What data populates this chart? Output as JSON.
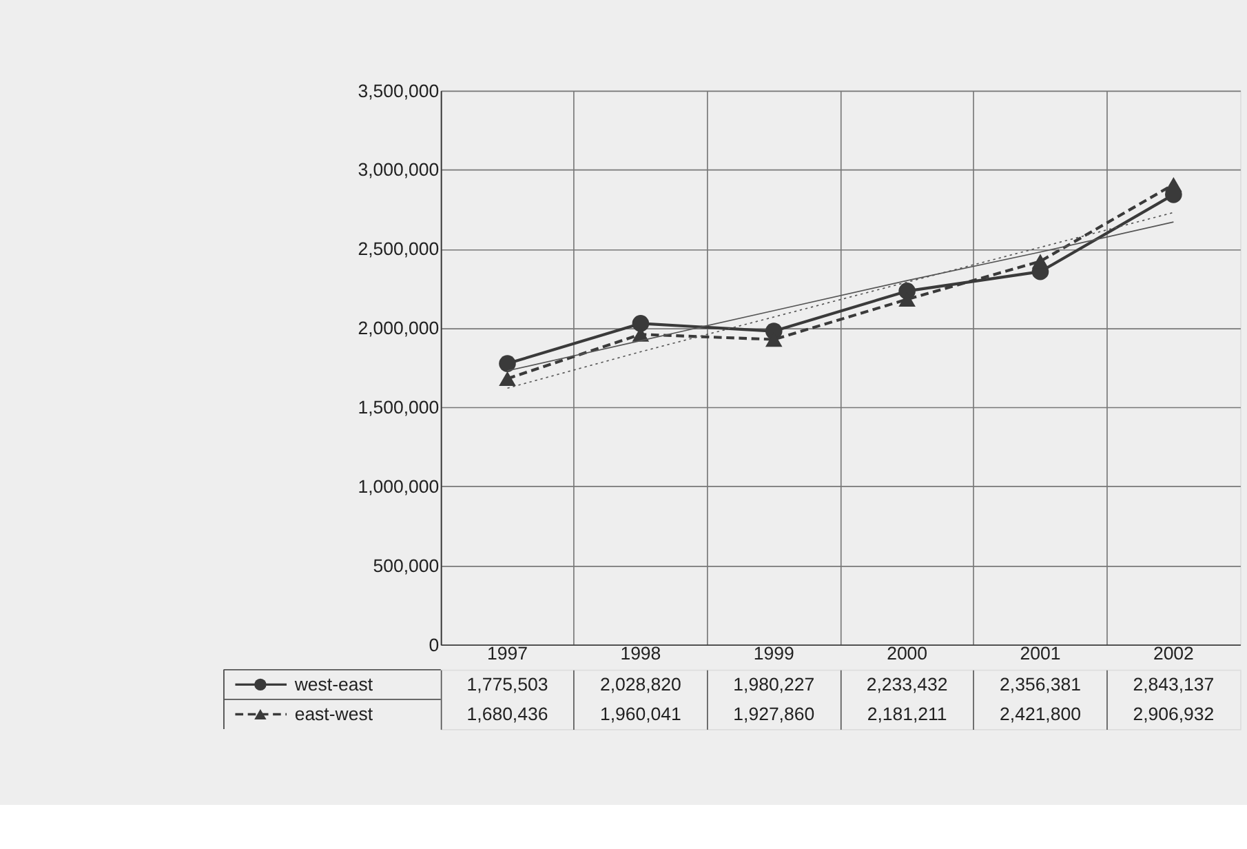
{
  "chart_data": {
    "type": "line",
    "categories": [
      "1997",
      "1998",
      "1999",
      "2000",
      "2001",
      "2002"
    ],
    "ylim": [
      0,
      3500000
    ],
    "grid": true,
    "legend": "bottom",
    "yticks": [
      {
        "value": 0,
        "label": "0"
      },
      {
        "value": 500000,
        "label": "500,000"
      },
      {
        "value": 1000000,
        "label": "1,000,000"
      },
      {
        "value": 1500000,
        "label": "1,500,000"
      },
      {
        "value": 2000000,
        "label": "2,000,000"
      },
      {
        "value": 2500000,
        "label": "2,500,000"
      },
      {
        "value": 3000000,
        "label": "3,000,000"
      },
      {
        "value": 3500000,
        "label": "3,500,000"
      }
    ],
    "series": [
      {
        "name": "west-east",
        "color": "#3a3a3a",
        "marker": "circle",
        "line_style": "solid",
        "values": [
          1775503,
          2028820,
          1980227,
          2233432,
          2356381,
          2843137
        ],
        "value_labels": [
          "1,775,503",
          "2,028,820",
          "1,980,227",
          "2,233,432",
          "2,356,381",
          "2,843,137"
        ]
      },
      {
        "name": "east-west",
        "color": "#3a3a3a",
        "marker": "triangle",
        "line_style": "dashed",
        "values": [
          1680436,
          1960041,
          1927860,
          2181211,
          2421800,
          2906932
        ],
        "value_labels": [
          "1,680,436",
          "1,960,041",
          "1,927,860",
          "2,181,211",
          "2,421,800",
          "2,906,932"
        ]
      },
      {
        "type": "line",
        "color": "#555555",
        "marker": "none",
        "line_style": "solid",
        "values": [
          1730000,
          1920000,
          2110000,
          2300000,
          2480000,
          2670000
        ]
      },
      {
        "type": "line",
        "color": "#555555",
        "marker": "none",
        "line_style": "dotted",
        "values": [
          1620000,
          1850000,
          2070000,
          2290000,
          2510000,
          2730000
        ]
      }
    ]
  }
}
